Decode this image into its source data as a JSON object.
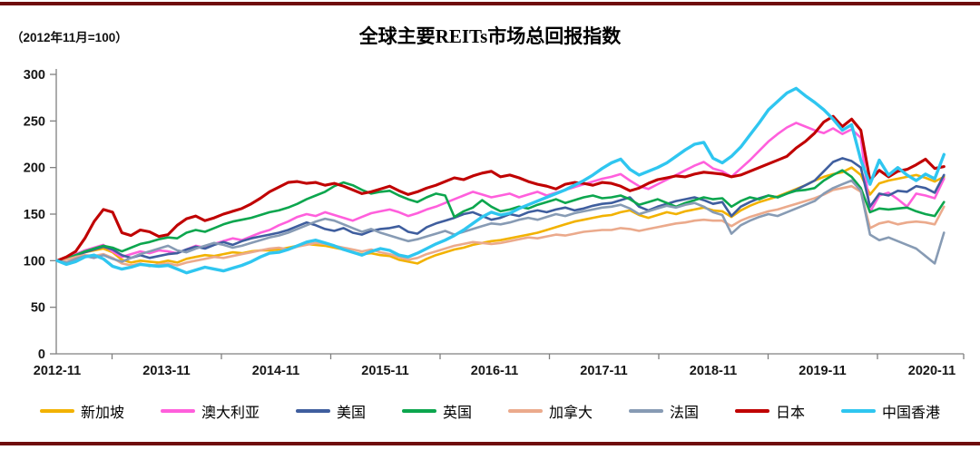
{
  "frame": {
    "border_color": "#6F0D0D",
    "axis_color": "#808080",
    "background": "#FFFFFF"
  },
  "chart_data": {
    "type": "line",
    "title": "全球主要REITs市场总回报指数",
    "index_base_note": "（2012年11月=100）",
    "xlabel": "",
    "ylabel": "",
    "x_axis": {
      "frequency": "monthly",
      "start": "2012-11",
      "end": "2020-11",
      "tick_labels": [
        "2012-11",
        "2013-11",
        "2014-11",
        "2015-11",
        "2016-11",
        "2017-11",
        "2018-11",
        "2019-11",
        "2020-11"
      ]
    },
    "y_axis": {
      "ticks": [
        0,
        50,
        100,
        150,
        200,
        250,
        300
      ],
      "range": [
        0,
        300
      ]
    },
    "grid": "off",
    "legend_position": "bottom",
    "series": [
      {
        "name": "新加坡",
        "color": "#F2B200",
        "values": [
          100,
          102,
          106,
          109,
          111,
          113,
          109,
          101,
          98,
          100,
          99,
          98,
          100,
          98,
          102,
          104,
          106,
          105,
          107,
          109,
          108,
          110,
          111,
          111,
          112,
          114,
          116,
          118,
          117,
          116,
          114,
          112,
          109,
          107,
          108,
          106,
          105,
          101,
          99,
          97,
          102,
          106,
          109,
          112,
          114,
          117,
          119,
          121,
          122,
          124,
          126,
          128,
          130,
          133,
          136,
          139,
          142,
          144,
          146,
          148,
          149,
          152,
          154,
          149,
          146,
          149,
          152,
          150,
          153,
          155,
          157,
          154,
          153,
          147,
          154,
          159,
          163,
          166,
          169,
          173,
          177,
          181,
          186,
          190,
          193,
          195,
          200,
          192,
          171,
          183,
          186,
          188,
          190,
          192,
          189,
          185,
          190
        ]
      },
      {
        "name": "澳大利亚",
        "color": "#FF5FDC",
        "values": [
          100,
          103,
          107,
          111,
          114,
          117,
          110,
          104,
          107,
          110,
          108,
          111,
          110,
          108,
          112,
          116,
          114,
          118,
          121,
          124,
          122,
          126,
          130,
          133,
          138,
          142,
          147,
          150,
          148,
          152,
          149,
          146,
          143,
          147,
          151,
          153,
          155,
          152,
          148,
          151,
          155,
          158,
          162,
          166,
          170,
          174,
          171,
          168,
          170,
          172,
          168,
          171,
          174,
          170,
          173,
          176,
          179,
          182,
          185,
          188,
          190,
          193,
          186,
          180,
          177,
          182,
          187,
          192,
          197,
          202,
          206,
          199,
          196,
          190,
          199,
          208,
          218,
          228,
          236,
          243,
          248,
          244,
          240,
          237,
          242,
          236,
          241,
          232,
          152,
          170,
          173,
          166,
          158,
          172,
          170,
          167,
          188
        ]
      },
      {
        "name": "美国",
        "color": "#3F5E9E",
        "values": [
          100,
          102,
          106,
          109,
          112,
          115,
          112,
          106,
          103,
          106,
          103,
          105,
          107,
          108,
          112,
          115,
          113,
          117,
          120,
          117,
          121,
          124,
          126,
          128,
          130,
          133,
          137,
          141,
          138,
          134,
          132,
          135,
          130,
          128,
          132,
          134,
          135,
          137,
          131,
          129,
          136,
          140,
          143,
          146,
          150,
          152,
          148,
          144,
          146,
          150,
          148,
          152,
          154,
          152,
          155,
          157,
          154,
          156,
          159,
          161,
          162,
          165,
          168,
          158,
          154,
          158,
          161,
          164,
          166,
          168,
          165,
          161,
          163,
          148,
          158,
          163,
          167,
          170,
          168,
          172,
          176,
          181,
          186,
          196,
          206,
          210,
          207,
          200,
          158,
          172,
          170,
          175,
          174,
          180,
          178,
          173,
          192
        ]
      },
      {
        "name": "英国",
        "color": "#0CA64E",
        "values": [
          100,
          102,
          106,
          110,
          113,
          116,
          114,
          110,
          114,
          118,
          120,
          123,
          125,
          124,
          130,
          133,
          131,
          135,
          139,
          142,
          144,
          146,
          149,
          152,
          154,
          157,
          161,
          166,
          170,
          174,
          180,
          184,
          181,
          176,
          172,
          174,
          175,
          170,
          166,
          163,
          168,
          172,
          170,
          147,
          153,
          157,
          165,
          158,
          153,
          155,
          158,
          156,
          160,
          163,
          166,
          162,
          165,
          168,
          170,
          167,
          168,
          170,
          166,
          160,
          163,
          166,
          162,
          158,
          162,
          165,
          168,
          166,
          167,
          158,
          164,
          168,
          166,
          170,
          168,
          172,
          175,
          176,
          178,
          186,
          192,
          197,
          190,
          178,
          152,
          156,
          155,
          156,
          157,
          153,
          150,
          148,
          163
        ]
      },
      {
        "name": "加拿大",
        "color": "#EBAA8C",
        "values": [
          100,
          101,
          104,
          106,
          105,
          107,
          103,
          97,
          95,
          97,
          94,
          96,
          97,
          95,
          98,
          100,
          102,
          104,
          103,
          105,
          107,
          109,
          111,
          113,
          114,
          112,
          115,
          117,
          119,
          118,
          116,
          114,
          112,
          110,
          112,
          109,
          107,
          104,
          101,
          103,
          107,
          110,
          113,
          116,
          118,
          120,
          119,
          118,
          119,
          121,
          123,
          125,
          124,
          126,
          128,
          127,
          129,
          131,
          132,
          133,
          133,
          135,
          134,
          132,
          134,
          136,
          138,
          140,
          141,
          143,
          144,
          143,
          143,
          137,
          143,
          147,
          150,
          153,
          155,
          158,
          161,
          164,
          167,
          171,
          176,
          178,
          180,
          174,
          135,
          140,
          142,
          139,
          141,
          142,
          141,
          139,
          158
        ]
      },
      {
        "name": "法国",
        "color": "#879BB4",
        "values": [
          100,
          98,
          102,
          105,
          103,
          106,
          102,
          99,
          103,
          107,
          110,
          113,
          116,
          111,
          109,
          113,
          116,
          119,
          117,
          114,
          116,
          119,
          122,
          125,
          127,
          130,
          134,
          138,
          142,
          145,
          143,
          139,
          135,
          131,
          134,
          130,
          127,
          124,
          121,
          123,
          126,
          129,
          132,
          128,
          131,
          134,
          137,
          140,
          139,
          141,
          144,
          146,
          144,
          147,
          150,
          148,
          151,
          153,
          155,
          157,
          158,
          160,
          156,
          150,
          153,
          156,
          159,
          157,
          160,
          162,
          158,
          152,
          149,
          129,
          138,
          143,
          147,
          150,
          148,
          152,
          156,
          160,
          164,
          172,
          178,
          182,
          186,
          175,
          128,
          122,
          125,
          121,
          117,
          113,
          105,
          97,
          130
        ]
      },
      {
        "name": "日本",
        "color": "#C00000",
        "values": [
          100,
          104,
          110,
          124,
          142,
          155,
          152,
          130,
          127,
          133,
          131,
          126,
          128,
          138,
          145,
          148,
          143,
          146,
          150,
          153,
          156,
          161,
          167,
          174,
          179,
          184,
          185,
          183,
          184,
          181,
          183,
          180,
          176,
          172,
          174,
          177,
          180,
          175,
          171,
          174,
          178,
          181,
          185,
          189,
          187,
          191,
          194,
          196,
          190,
          192,
          189,
          185,
          182,
          180,
          177,
          182,
          184,
          183,
          181,
          184,
          183,
          180,
          175,
          178,
          183,
          187,
          189,
          191,
          190,
          193,
          195,
          194,
          193,
          190,
          192,
          196,
          200,
          204,
          208,
          212,
          221,
          228,
          237,
          249,
          255,
          244,
          252,
          240,
          186,
          197,
          190,
          196,
          198,
          203,
          209,
          199,
          201
        ]
      },
      {
        "name": "中国香港",
        "color": "#2FC6F0",
        "values": [
          100,
          96,
          99,
          104,
          106,
          102,
          94,
          91,
          93,
          96,
          95,
          94,
          95,
          91,
          87,
          90,
          93,
          91,
          89,
          92,
          95,
          99,
          104,
          108,
          109,
          112,
          116,
          120,
          122,
          119,
          116,
          112,
          109,
          106,
          110,
          113,
          111,
          106,
          104,
          108,
          113,
          118,
          122,
          127,
          133,
          140,
          147,
          152,
          149,
          151,
          156,
          160,
          164,
          168,
          172,
          176,
          181,
          186,
          192,
          199,
          205,
          209,
          198,
          192,
          196,
          200,
          205,
          212,
          219,
          225,
          227,
          210,
          205,
          212,
          222,
          235,
          248,
          262,
          271,
          280,
          285,
          277,
          270,
          262,
          252,
          240,
          246,
          208,
          182,
          208,
          192,
          200,
          192,
          186,
          193,
          188,
          214
        ]
      }
    ]
  }
}
